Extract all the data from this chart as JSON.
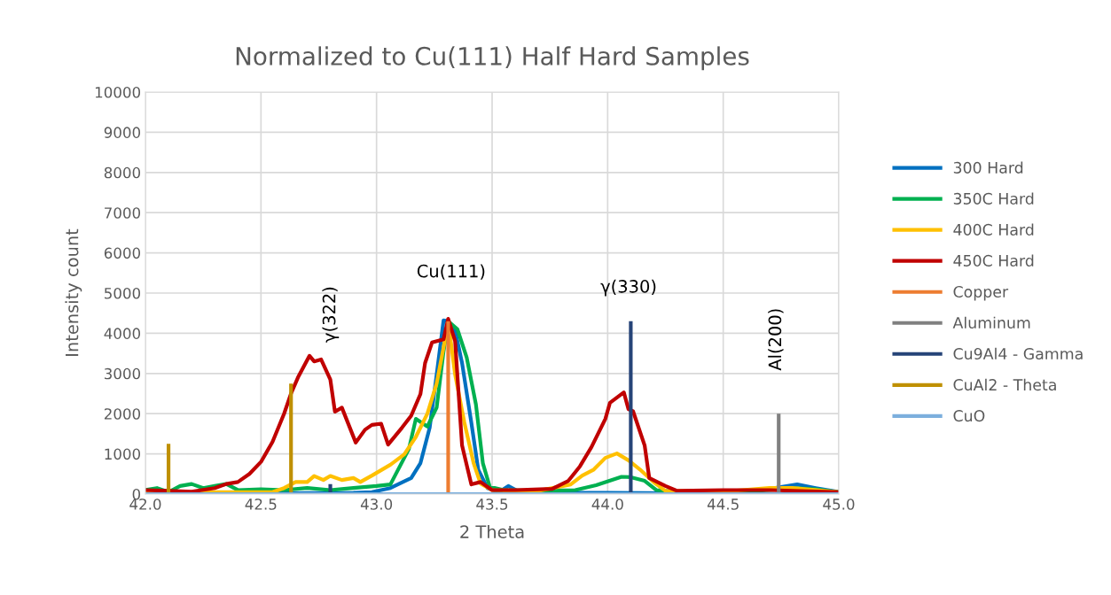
{
  "chart_data": {
    "type": "line",
    "title": "Normalized to Cu(111) Half Hard Samples",
    "xlabel": "2 Theta",
    "ylabel": "Intensity count",
    "xlim": [
      42.0,
      45.0
    ],
    "ylim": [
      0,
      10000
    ],
    "xticks": [
      {
        "value": 42.0,
        "label": "42.0"
      },
      {
        "value": 42.5,
        "label": "42.5"
      },
      {
        "value": 43.0,
        "label": "43.0"
      },
      {
        "value": 43.5,
        "label": "43.5"
      },
      {
        "value": 44.0,
        "label": "44.0"
      },
      {
        "value": 44.5,
        "label": "44.5"
      },
      {
        "value": 45.0,
        "label": "45.0"
      }
    ],
    "yticks": [
      0,
      1000,
      2000,
      3000,
      4000,
      5000,
      6000,
      7000,
      8000,
      9000,
      10000
    ],
    "grid": true,
    "legend": "right",
    "marker": "none",
    "line_style": "solid",
    "series": [
      {
        "name": "300 Hard",
        "color": "#0070c0",
        "x": [
          42.0,
          42.3,
          42.6,
          42.9,
          42.98,
          43.06,
          43.15,
          43.19,
          43.23,
          43.26,
          43.29,
          43.31,
          43.34,
          43.37,
          43.41,
          43.44,
          43.48,
          43.53,
          43.57,
          43.62,
          43.8,
          44.0,
          44.3,
          44.6,
          44.72,
          44.82,
          44.9,
          45.0
        ],
        "values": [
          20,
          20,
          20,
          30,
          50,
          150,
          400,
          770,
          1650,
          2970,
          4320,
          4300,
          4070,
          3260,
          1780,
          610,
          150,
          50,
          200,
          50,
          30,
          30,
          20,
          20,
          150,
          240,
          150,
          50
        ]
      },
      {
        "name": "350C Hard",
        "color": "#00b050",
        "x": [
          42.0,
          42.05,
          42.1,
          42.15,
          42.2,
          42.25,
          42.3,
          42.35,
          42.4,
          42.5,
          42.6,
          42.7,
          42.8,
          42.9,
          43.0,
          43.06,
          43.14,
          43.17,
          43.22,
          43.26,
          43.29,
          43.31,
          43.35,
          43.39,
          43.43,
          43.46,
          43.49,
          43.55,
          43.7,
          43.86,
          43.95,
          44.06,
          44.1,
          44.16,
          44.21,
          44.3,
          44.5,
          44.7,
          44.8,
          44.9,
          45.0
        ],
        "values": [
          100,
          150,
          50,
          200,
          250,
          150,
          200,
          250,
          100,
          120,
          100,
          150,
          100,
          150,
          200,
          240,
          1120,
          1870,
          1680,
          2150,
          3550,
          4300,
          4100,
          3400,
          2230,
          770,
          180,
          100,
          80,
          100,
          220,
          430,
          420,
          330,
          100,
          60,
          50,
          100,
          150,
          120,
          50
        ]
      },
      {
        "name": "400C Hard",
        "color": "#ffc000",
        "x": [
          42.0,
          42.3,
          42.55,
          42.6,
          42.65,
          42.7,
          42.73,
          42.77,
          42.8,
          42.85,
          42.9,
          42.93,
          42.98,
          43.06,
          43.12,
          43.17,
          43.22,
          43.26,
          43.29,
          43.31,
          43.34,
          43.38,
          43.42,
          43.45,
          43.5,
          43.7,
          43.84,
          43.89,
          43.94,
          43.99,
          44.04,
          44.09,
          44.14,
          44.2,
          44.25,
          44.5,
          44.7,
          44.8,
          45.0
        ],
        "values": [
          50,
          50,
          50,
          150,
          300,
          300,
          450,
          350,
          450,
          350,
          400,
          300,
          460,
          730,
          990,
          1420,
          2000,
          2750,
          3650,
          4300,
          2970,
          1780,
          770,
          260,
          100,
          80,
          240,
          460,
          610,
          900,
          1010,
          840,
          610,
          290,
          80,
          60,
          150,
          150,
          50
        ]
      },
      {
        "name": "450C Hard",
        "color": "#c00000",
        "x": [
          42.0,
          42.1,
          42.2,
          42.3,
          42.35,
          42.4,
          42.45,
          42.5,
          42.55,
          42.6,
          42.63,
          42.66,
          42.71,
          42.73,
          42.76,
          42.8,
          42.82,
          42.85,
          42.91,
          42.95,
          42.98,
          43.02,
          43.05,
          43.11,
          43.15,
          43.19,
          43.21,
          43.24,
          43.29,
          43.31,
          43.34,
          43.37,
          43.41,
          43.45,
          43.5,
          43.6,
          43.76,
          43.83,
          43.88,
          43.93,
          43.99,
          44.01,
          44.07,
          44.09,
          44.11,
          44.16,
          44.18,
          44.25,
          44.3,
          44.5,
          44.7,
          45.0
        ],
        "values": [
          100,
          80,
          60,
          150,
          250,
          300,
          500,
          800,
          1300,
          2000,
          2500,
          2900,
          3440,
          3300,
          3350,
          2850,
          2050,
          2150,
          1280,
          1600,
          1720,
          1750,
          1230,
          1650,
          1950,
          2490,
          3260,
          3770,
          3850,
          4360,
          3800,
          1210,
          240,
          300,
          100,
          100,
          130,
          330,
          690,
          1170,
          1870,
          2270,
          2530,
          2110,
          2060,
          1210,
          400,
          200,
          80,
          100,
          100,
          50
        ]
      },
      {
        "name": "Copper",
        "color": "#ed7d31",
        "x": [
          43.31,
          43.31
        ],
        "values": [
          0,
          4300
        ]
      },
      {
        "name": "Aluminum",
        "color": "#808080",
        "x": [
          44.74,
          44.74
        ],
        "values": [
          0,
          2000
        ]
      },
      {
        "name": "Cu9Al4 - Gamma",
        "color": "#264478",
        "x": [
          42.8,
          42.8,
          null,
          44.1,
          44.1
        ],
        "values": [
          0,
          250,
          null,
          0,
          4300
        ]
      },
      {
        "name": "CuAl2 - Theta",
        "color": "#bf9000",
        "x": [
          42.1,
          42.1,
          null,
          42.63,
          42.63
        ],
        "values": [
          0,
          1250,
          null,
          0,
          2750
        ]
      },
      {
        "name": "CuO",
        "color": "#7cafdd",
        "x": [
          42.0,
          45.0
        ],
        "values": [
          0,
          0
        ]
      }
    ],
    "annotations": [
      "γ(322)",
      "Cu(111)",
      "γ(330)",
      "Al(200)"
    ]
  }
}
